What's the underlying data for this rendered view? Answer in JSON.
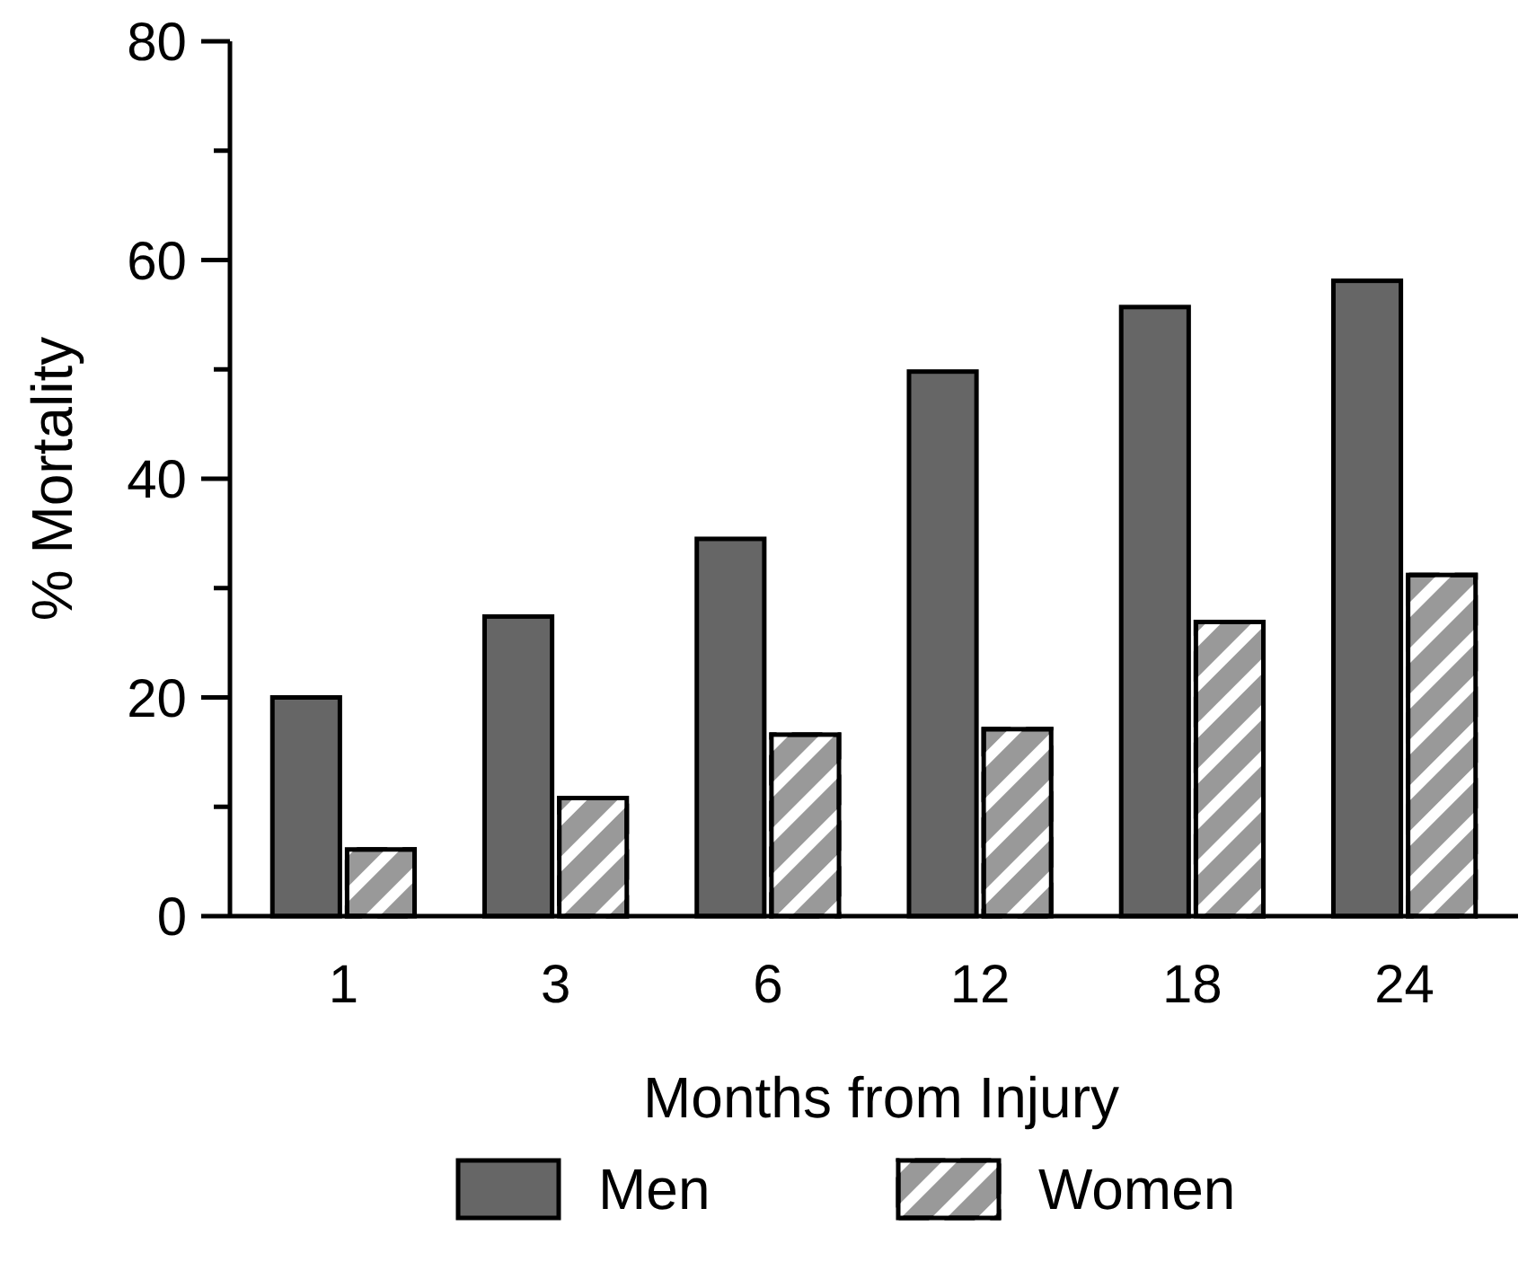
{
  "chart_data": {
    "type": "bar",
    "xlabel": "Months from Injury",
    "ylabel": "% Mortality",
    "categories": [
      "1",
      "3",
      "6",
      "12",
      "18",
      "24"
    ],
    "series": [
      {
        "name": "Men",
        "color": "#666666",
        "values": [
          20,
          27.4,
          34.5,
          49.8,
          55.7,
          58.1
        ]
      },
      {
        "name": "Women",
        "color": "#999999",
        "values": [
          6.1,
          10.8,
          16.6,
          17.1,
          26.9,
          31.2
        ]
      }
    ],
    "ylim": [
      0,
      80
    ],
    "yticks": [
      0,
      {
        "value": 10,
        "label": null
      },
      20,
      {
        "value": 30,
        "label": null
      },
      40,
      {
        "value": 50,
        "label": null
      },
      60,
      {
        "value": 70,
        "label": null
      },
      80
    ],
    "grid": false,
    "legend": "bottom"
  }
}
